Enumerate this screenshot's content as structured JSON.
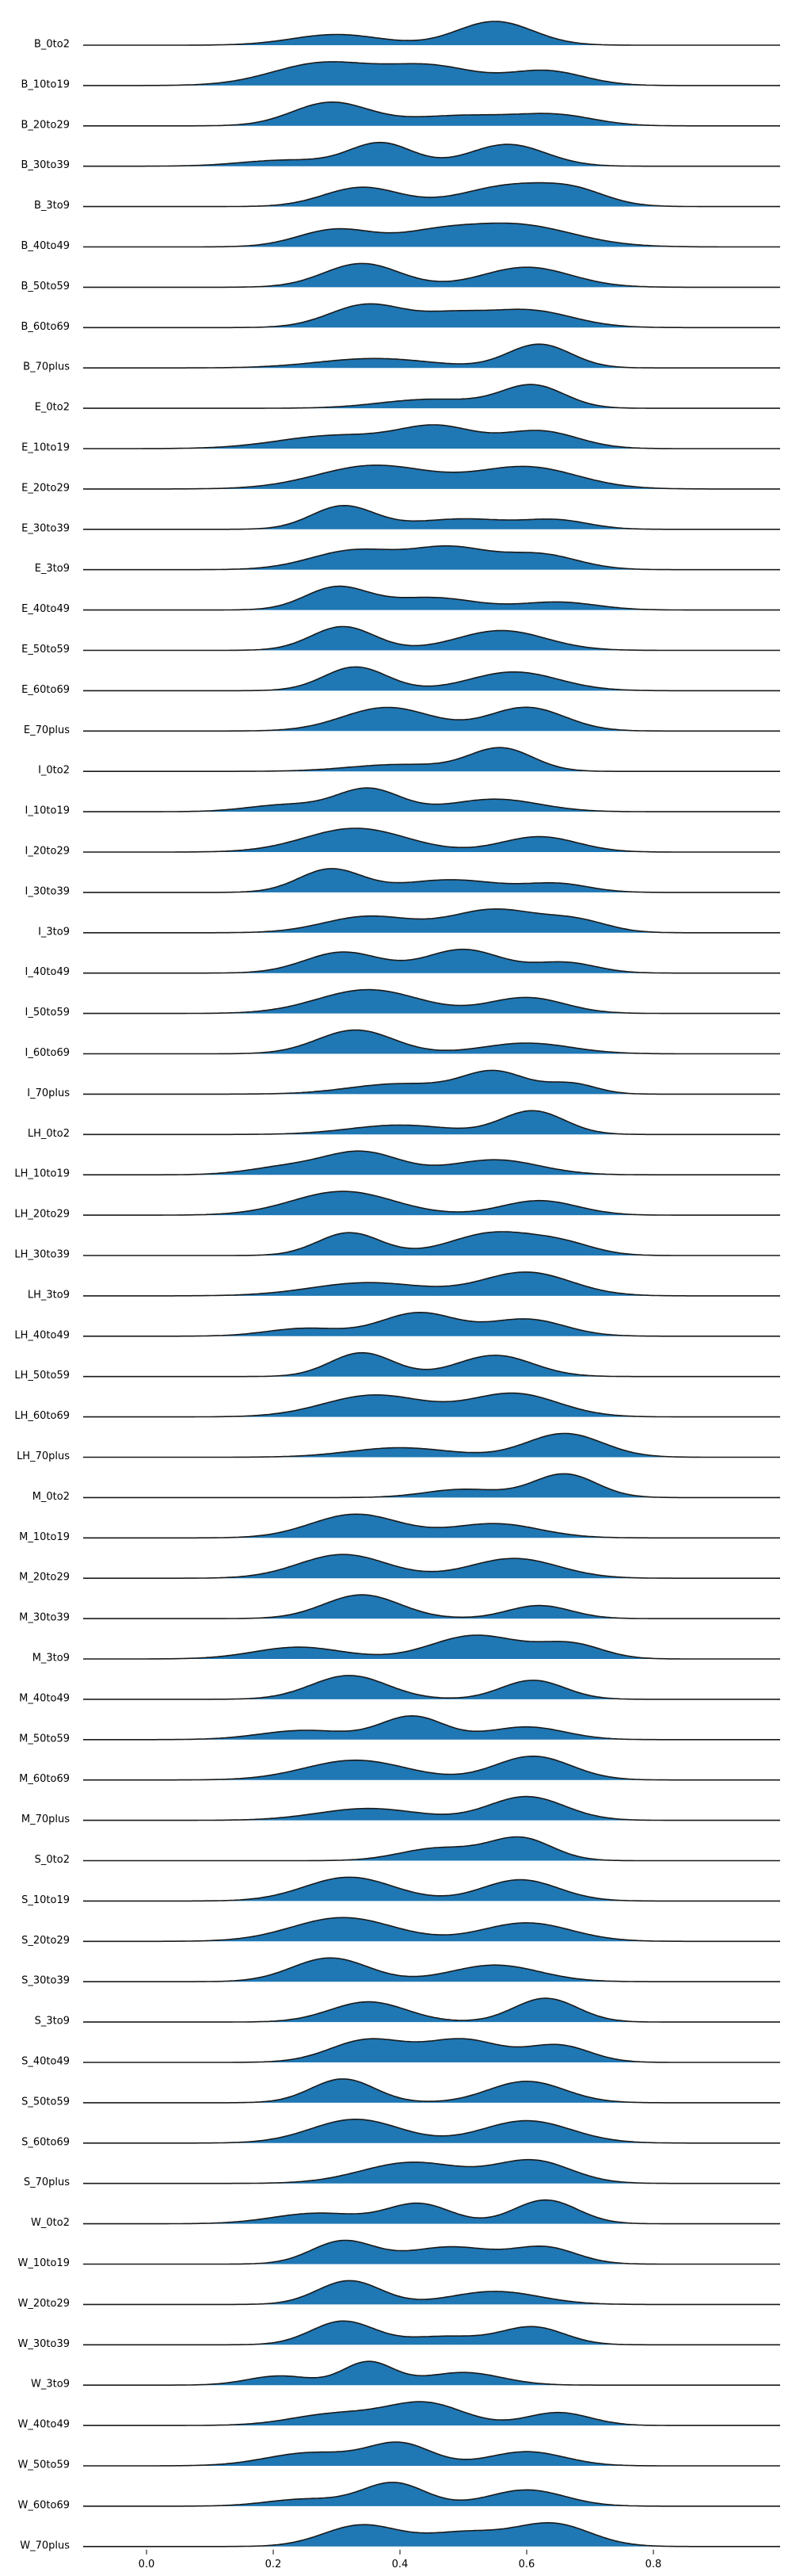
{
  "chart_data": {
    "type": "ridgeline",
    "xlim": [
      -0.1,
      1.0
    ],
    "xticks": [
      0.0,
      0.2,
      0.4,
      0.6,
      0.8
    ],
    "xtick_labels": [
      "0.0",
      "0.2",
      "0.4",
      "0.6",
      "0.8"
    ],
    "fill_color": "#1f77b4",
    "line_color": "#1a1a1a",
    "series": [
      {
        "name": "B_0to2",
        "peaks": [
          [
            0.3,
            0.07,
            0.45
          ],
          [
            0.55,
            0.06,
            1.0
          ]
        ]
      },
      {
        "name": "B_10to19",
        "peaks": [
          [
            0.28,
            0.08,
            0.85
          ],
          [
            0.45,
            0.07,
            0.7
          ],
          [
            0.63,
            0.06,
            0.55
          ]
        ]
      },
      {
        "name": "B_20to29",
        "peaks": [
          [
            0.29,
            0.06,
            1.0
          ],
          [
            0.5,
            0.09,
            0.45
          ],
          [
            0.65,
            0.06,
            0.4
          ]
        ]
      },
      {
        "name": "B_30to39",
        "peaks": [
          [
            0.37,
            0.05,
            0.95
          ],
          [
            0.57,
            0.06,
            0.9
          ],
          [
            0.22,
            0.07,
            0.25
          ]
        ]
      },
      {
        "name": "B_3to9",
        "peaks": [
          [
            0.34,
            0.06,
            0.85
          ],
          [
            0.58,
            0.08,
            0.95
          ],
          [
            0.68,
            0.05,
            0.45
          ]
        ]
      },
      {
        "name": "B_40to49",
        "peaks": [
          [
            0.3,
            0.06,
            0.7
          ],
          [
            0.58,
            0.09,
            0.9
          ],
          [
            0.45,
            0.06,
            0.4
          ]
        ]
      },
      {
        "name": "B_50to59",
        "peaks": [
          [
            0.34,
            0.06,
            0.95
          ],
          [
            0.6,
            0.07,
            0.8
          ]
        ]
      },
      {
        "name": "B_60to69",
        "peaks": [
          [
            0.35,
            0.06,
            1.0
          ],
          [
            0.6,
            0.07,
            0.75
          ],
          [
            0.48,
            0.05,
            0.45
          ]
        ]
      },
      {
        "name": "B_70plus",
        "peaks": [
          [
            0.36,
            0.09,
            0.4
          ],
          [
            0.62,
            0.05,
            1.0
          ]
        ]
      },
      {
        "name": "E_0to2",
        "peaks": [
          [
            0.45,
            0.08,
            0.4
          ],
          [
            0.61,
            0.05,
            1.0
          ]
        ]
      },
      {
        "name": "E_10to19",
        "peaks": [
          [
            0.3,
            0.09,
            0.45
          ],
          [
            0.46,
            0.06,
            0.7
          ],
          [
            0.62,
            0.06,
            0.6
          ]
        ]
      },
      {
        "name": "E_20to29",
        "peaks": [
          [
            0.36,
            0.09,
            0.7
          ],
          [
            0.6,
            0.08,
            0.65
          ]
        ]
      },
      {
        "name": "E_30to39",
        "peaks": [
          [
            0.31,
            0.05,
            1.0
          ],
          [
            0.5,
            0.08,
            0.45
          ],
          [
            0.65,
            0.05,
            0.35
          ]
        ]
      },
      {
        "name": "E_3to9",
        "peaks": [
          [
            0.33,
            0.07,
            0.7
          ],
          [
            0.48,
            0.06,
            0.75
          ],
          [
            0.62,
            0.06,
            0.55
          ]
        ]
      },
      {
        "name": "E_40to49",
        "peaks": [
          [
            0.3,
            0.05,
            1.0
          ],
          [
            0.45,
            0.07,
            0.55
          ],
          [
            0.65,
            0.06,
            0.35
          ]
        ]
      },
      {
        "name": "E_50to59",
        "peaks": [
          [
            0.31,
            0.05,
            0.9
          ],
          [
            0.56,
            0.07,
            0.75
          ]
        ]
      },
      {
        "name": "E_60to69",
        "peaks": [
          [
            0.33,
            0.05,
            0.95
          ],
          [
            0.58,
            0.07,
            0.75
          ]
        ]
      },
      {
        "name": "E_70plus",
        "peaks": [
          [
            0.38,
            0.07,
            0.8
          ],
          [
            0.6,
            0.06,
            0.8
          ]
        ]
      },
      {
        "name": "I_0to2",
        "peaks": [
          [
            0.4,
            0.08,
            0.3
          ],
          [
            0.56,
            0.05,
            1.0
          ]
        ]
      },
      {
        "name": "I_10to19",
        "peaks": [
          [
            0.35,
            0.05,
            1.0
          ],
          [
            0.55,
            0.07,
            0.55
          ],
          [
            0.22,
            0.06,
            0.3
          ]
        ]
      },
      {
        "name": "I_20to29",
        "peaks": [
          [
            0.33,
            0.08,
            0.85
          ],
          [
            0.62,
            0.06,
            0.55
          ]
        ]
      },
      {
        "name": "I_30to39",
        "peaks": [
          [
            0.29,
            0.05,
            1.0
          ],
          [
            0.48,
            0.08,
            0.55
          ],
          [
            0.65,
            0.05,
            0.35
          ]
        ]
      },
      {
        "name": "I_3to9",
        "peaks": [
          [
            0.35,
            0.07,
            0.6
          ],
          [
            0.55,
            0.07,
            0.85
          ],
          [
            0.68,
            0.05,
            0.4
          ]
        ]
      },
      {
        "name": "I_40to49",
        "peaks": [
          [
            0.31,
            0.06,
            0.8
          ],
          [
            0.5,
            0.06,
            0.9
          ],
          [
            0.66,
            0.05,
            0.4
          ]
        ]
      },
      {
        "name": "I_50to59",
        "peaks": [
          [
            0.35,
            0.08,
            0.9
          ],
          [
            0.6,
            0.06,
            0.6
          ]
        ]
      },
      {
        "name": "I_60to69",
        "peaks": [
          [
            0.33,
            0.06,
            1.0
          ],
          [
            0.6,
            0.07,
            0.45
          ]
        ]
      },
      {
        "name": "I_70plus",
        "peaks": [
          [
            0.4,
            0.08,
            0.45
          ],
          [
            0.55,
            0.05,
            0.95
          ],
          [
            0.67,
            0.04,
            0.45
          ]
        ]
      },
      {
        "name": "LH_0to2",
        "peaks": [
          [
            0.4,
            0.08,
            0.4
          ],
          [
            0.61,
            0.05,
            1.0
          ]
        ]
      },
      {
        "name": "LH_10to19",
        "peaks": [
          [
            0.34,
            0.06,
            0.9
          ],
          [
            0.55,
            0.07,
            0.6
          ],
          [
            0.22,
            0.06,
            0.3
          ]
        ]
      },
      {
        "name": "LH_20to29",
        "peaks": [
          [
            0.31,
            0.08,
            0.9
          ],
          [
            0.62,
            0.06,
            0.55
          ]
        ]
      },
      {
        "name": "LH_30to39",
        "peaks": [
          [
            0.32,
            0.05,
            0.85
          ],
          [
            0.55,
            0.07,
            0.85
          ],
          [
            0.66,
            0.05,
            0.35
          ]
        ]
      },
      {
        "name": "LH_3to9",
        "peaks": [
          [
            0.35,
            0.09,
            0.45
          ],
          [
            0.6,
            0.07,
            0.8
          ]
        ]
      },
      {
        "name": "LH_40to49",
        "peaks": [
          [
            0.43,
            0.06,
            0.9
          ],
          [
            0.6,
            0.06,
            0.65
          ],
          [
            0.25,
            0.06,
            0.3
          ]
        ]
      },
      {
        "name": "LH_50to59",
        "peaks": [
          [
            0.34,
            0.05,
            0.95
          ],
          [
            0.55,
            0.06,
            0.85
          ]
        ]
      },
      {
        "name": "LH_60to69",
        "peaks": [
          [
            0.36,
            0.08,
            0.75
          ],
          [
            0.58,
            0.07,
            0.8
          ]
        ]
      },
      {
        "name": "LH_70plus",
        "peaks": [
          [
            0.4,
            0.08,
            0.4
          ],
          [
            0.66,
            0.06,
            1.0
          ]
        ]
      },
      {
        "name": "M_0to2",
        "peaks": [
          [
            0.5,
            0.06,
            0.35
          ],
          [
            0.66,
            0.05,
            1.0
          ]
        ]
      },
      {
        "name": "M_10to19",
        "peaks": [
          [
            0.33,
            0.07,
            1.0
          ],
          [
            0.55,
            0.07,
            0.6
          ]
        ]
      },
      {
        "name": "M_20to29",
        "peaks": [
          [
            0.31,
            0.07,
            0.9
          ],
          [
            0.58,
            0.07,
            0.75
          ]
        ]
      },
      {
        "name": "M_30to39",
        "peaks": [
          [
            0.34,
            0.06,
            1.0
          ],
          [
            0.62,
            0.05,
            0.55
          ]
        ]
      },
      {
        "name": "M_3to9",
        "peaks": [
          [
            0.24,
            0.07,
            0.45
          ],
          [
            0.52,
            0.07,
            0.9
          ],
          [
            0.67,
            0.05,
            0.55
          ]
        ]
      },
      {
        "name": "M_40to49",
        "peaks": [
          [
            0.32,
            0.06,
            1.0
          ],
          [
            0.61,
            0.05,
            0.8
          ]
        ]
      },
      {
        "name": "M_50to59",
        "peaks": [
          [
            0.25,
            0.07,
            0.4
          ],
          [
            0.42,
            0.05,
            1.0
          ],
          [
            0.6,
            0.06,
            0.55
          ]
        ]
      },
      {
        "name": "M_60to69",
        "peaks": [
          [
            0.33,
            0.08,
            0.75
          ],
          [
            0.61,
            0.06,
            0.9
          ]
        ]
      },
      {
        "name": "M_70plus",
        "peaks": [
          [
            0.35,
            0.08,
            0.5
          ],
          [
            0.6,
            0.06,
            1.0
          ]
        ]
      },
      {
        "name": "S_0to2",
        "peaks": [
          [
            0.46,
            0.06,
            0.55
          ],
          [
            0.59,
            0.05,
            1.0
          ]
        ]
      },
      {
        "name": "S_10to19",
        "peaks": [
          [
            0.32,
            0.07,
            0.95
          ],
          [
            0.59,
            0.06,
            0.85
          ]
        ]
      },
      {
        "name": "S_20to29",
        "peaks": [
          [
            0.31,
            0.08,
            0.9
          ],
          [
            0.6,
            0.07,
            0.7
          ]
        ]
      },
      {
        "name": "S_30to39",
        "peaks": [
          [
            0.29,
            0.06,
            1.0
          ],
          [
            0.55,
            0.07,
            0.7
          ]
        ]
      },
      {
        "name": "S_3to9",
        "peaks": [
          [
            0.35,
            0.06,
            0.85
          ],
          [
            0.63,
            0.05,
            1.0
          ]
        ]
      },
      {
        "name": "S_40to49",
        "peaks": [
          [
            0.35,
            0.06,
            0.8
          ],
          [
            0.5,
            0.06,
            0.8
          ],
          [
            0.65,
            0.05,
            0.6
          ]
        ]
      },
      {
        "name": "S_50to59",
        "peaks": [
          [
            0.31,
            0.05,
            1.0
          ],
          [
            0.6,
            0.06,
            0.9
          ]
        ]
      },
      {
        "name": "S_60to69",
        "peaks": [
          [
            0.33,
            0.07,
            0.85
          ],
          [
            0.6,
            0.07,
            0.8
          ]
        ]
      },
      {
        "name": "S_70plus",
        "peaks": [
          [
            0.42,
            0.08,
            0.8
          ],
          [
            0.61,
            0.06,
            0.85
          ]
        ]
      },
      {
        "name": "W_0to2",
        "peaks": [
          [
            0.27,
            0.07,
            0.4
          ],
          [
            0.43,
            0.05,
            0.75
          ],
          [
            0.63,
            0.05,
            0.9
          ]
        ]
      },
      {
        "name": "W_10to19",
        "peaks": [
          [
            0.31,
            0.05,
            1.0
          ],
          [
            0.48,
            0.07,
            0.75
          ],
          [
            0.63,
            0.05,
            0.7
          ]
        ]
      },
      {
        "name": "W_20to29",
        "peaks": [
          [
            0.32,
            0.05,
            1.0
          ],
          [
            0.55,
            0.07,
            0.55
          ]
        ]
      },
      {
        "name": "W_30to39",
        "peaks": [
          [
            0.31,
            0.05,
            1.0
          ],
          [
            0.61,
            0.05,
            0.75
          ],
          [
            0.47,
            0.06,
            0.35
          ]
        ]
      },
      {
        "name": "W_3to9",
        "peaks": [
          [
            0.21,
            0.05,
            0.4
          ],
          [
            0.35,
            0.04,
            1.0
          ],
          [
            0.5,
            0.06,
            0.55
          ]
        ]
      },
      {
        "name": "W_40to49",
        "peaks": [
          [
            0.3,
            0.07,
            0.45
          ],
          [
            0.44,
            0.06,
            0.85
          ],
          [
            0.65,
            0.05,
            0.5
          ]
        ]
      },
      {
        "name": "W_50to59",
        "peaks": [
          [
            0.26,
            0.07,
            0.6
          ],
          [
            0.4,
            0.05,
            1.0
          ],
          [
            0.6,
            0.06,
            0.65
          ]
        ]
      },
      {
        "name": "W_60to69",
        "peaks": [
          [
            0.39,
            0.05,
            1.0
          ],
          [
            0.6,
            0.06,
            0.7
          ],
          [
            0.25,
            0.06,
            0.3
          ]
        ]
      },
      {
        "name": "W_70plus",
        "peaks": [
          [
            0.34,
            0.06,
            0.8
          ],
          [
            0.64,
            0.06,
            0.85
          ],
          [
            0.5,
            0.06,
            0.5
          ]
        ]
      }
    ]
  }
}
